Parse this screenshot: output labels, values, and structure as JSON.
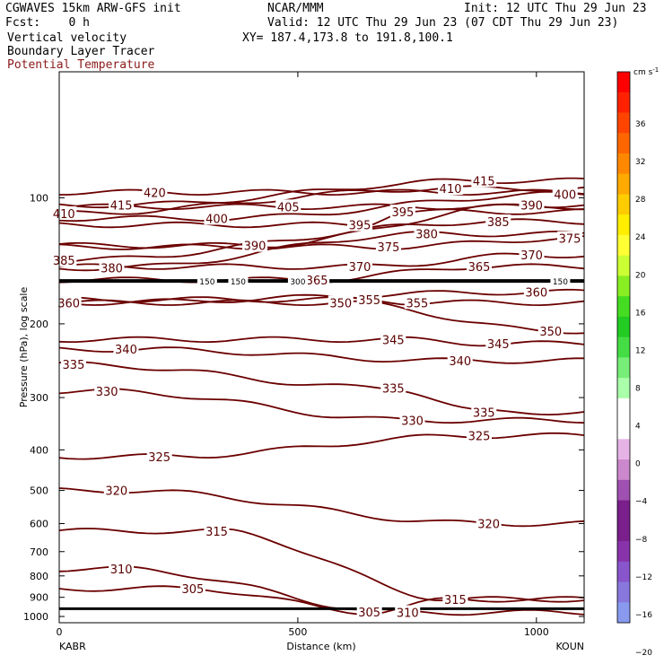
{
  "header": {
    "line1_left": "CGWAVES 15km ARW-GFS init",
    "line1_mid": "NCAR/MMM",
    "line1_right": "Init: 12 UTC Thu 29 Jun 23",
    "line2_left": "Fcst:    0 h",
    "line2_right": "Valid: 12 UTC Thu 29 Jun 23 (07 CDT Thu 29 Jun 23)",
    "line3_left": "Vertical velocity",
    "line3_mid": "XY= 187.4,173.8 to 191.8,100.1",
    "line4_left": "Boundary Layer Tracer",
    "line5_left": "Potential Temperature"
  },
  "chart_data": {
    "type": "cross-section contour",
    "xlabel": "Distance (km)",
    "ylabel": "Pressure (hPa), log scale",
    "x_ticks": [
      0,
      500,
      1000
    ],
    "xlim": [
      0,
      1100
    ],
    "y_ticks": [
      100,
      200,
      300,
      400,
      500,
      600,
      700,
      800,
      900,
      1000
    ],
    "left_endpoint": "KABR",
    "right_endpoint": "KOUN",
    "series": [
      {
        "name": "Potential Temperature",
        "contours": [
          {
            "label": "305",
            "label_positions": [
              [
                280,
                858
              ],
              [
                650,
                975
              ],
              [
                830,
                910
              ]
            ]
          },
          {
            "label": "310",
            "label_positions": [
              [
                130,
                770
              ],
              [
                730,
                978
              ]
            ]
          },
          {
            "label": "315",
            "label_positions": [
              [
                330,
                625
              ],
              [
                830,
                910
              ]
            ]
          },
          {
            "label": "320",
            "label_positions": [
              [
                120,
                500
              ],
              [
                900,
                600
              ]
            ]
          },
          {
            "label": "325",
            "label_positions": [
              [
                210,
                415
              ],
              [
                880,
                370
              ]
            ]
          },
          {
            "label": "330",
            "label_positions": [
              [
                100,
                290
              ],
              [
                740,
                340
              ]
            ]
          },
          {
            "label": "335",
            "label_positions": [
              [
                30,
                250
              ],
              [
                700,
                285
              ],
              [
                890,
                325
              ]
            ]
          },
          {
            "label": "340",
            "label_positions": [
              [
                140,
                230
              ],
              [
                840,
                245
              ]
            ]
          },
          {
            "label": "345",
            "label_positions": [
              [
                700,
                218
              ],
              [
                920,
                223
              ]
            ]
          },
          {
            "label": "350",
            "label_positions": [
              [
                590,
                178
              ],
              [
                1030,
                208
              ]
            ]
          },
          {
            "label": "355",
            "label_positions": [
              [
                650,
                175
              ],
              [
                750,
                178
              ]
            ]
          },
          {
            "label": "360",
            "label_positions": [
              [
                20,
                178
              ],
              [
                1000,
                168
              ]
            ]
          },
          {
            "label": "365",
            "label_positions": [
              [
                540,
                157
              ],
              [
                880,
                146
              ]
            ]
          },
          {
            "label": "370",
            "label_positions": [
              [
                630,
                146
              ],
              [
                990,
                137
              ]
            ]
          },
          {
            "label": "375",
            "label_positions": [
              [
                690,
                131
              ],
              [
                1070,
                125
              ]
            ]
          },
          {
            "label": "380",
            "label_positions": [
              [
                110,
                147
              ],
              [
                770,
                122
              ]
            ]
          },
          {
            "label": "385",
            "label_positions": [
              [
                10,
                141
              ],
              [
                920,
                114
              ]
            ]
          },
          {
            "label": "390",
            "label_positions": [
              [
                410,
                130
              ],
              [
                990,
                104
              ]
            ]
          },
          {
            "label": "395",
            "label_positions": [
              [
                630,
                116
              ],
              [
                720,
                108
              ]
            ]
          },
          {
            "label": "400",
            "label_positions": [
              [
                330,
                112
              ],
              [
                1060,
                98
              ]
            ]
          },
          {
            "label": "405",
            "label_positions": [
              [
                480,
                105
              ]
            ]
          },
          {
            "label": "410",
            "label_positions": [
              [
                10,
                109
              ],
              [
                820,
                95
              ]
            ]
          },
          {
            "label": "415",
            "label_positions": [
              [
                130,
                104
              ],
              [
                890,
                91
              ]
            ]
          },
          {
            "label": "420",
            "label_positions": [
              [
                200,
                97
              ]
            ]
          }
        ]
      },
      {
        "name": "Boundary Layer Tracer",
        "contours": [
          {
            "label": "150",
            "label_positions": [
              [
                310,
                158
              ],
              [
                375,
                158
              ],
              [
                1050,
                158
              ]
            ]
          },
          {
            "label": "300",
            "label_positions": [
              [
                500,
                158
              ]
            ]
          }
        ]
      }
    ],
    "colorbar": {
      "unit": "cm s",
      "unit_exponent": "-1",
      "levels": [
        -20,
        -16,
        -12,
        -8,
        -4,
        0,
        4,
        8,
        12,
        16,
        20,
        24,
        28,
        32,
        36
      ],
      "labels": [
        "36",
        "32",
        "28",
        "24",
        "20",
        "16",
        "12",
        "8",
        "4",
        "0",
        "−4",
        "−8",
        "−12",
        "−16",
        "−20"
      ],
      "colors": [
        "#ff0000",
        "#ff2200",
        "#ff4400",
        "#ff6600",
        "#ff8800",
        "#ffaa00",
        "#ffcc00",
        "#ffee00",
        "#ffff33",
        "#ccff33",
        "#88ee22",
        "#44dd22",
        "#22cc22",
        "#44dd44",
        "#77ee77",
        "#aaffaa",
        "#ffffff",
        "#ffffff",
        "#e6b3e6",
        "#cc88cc",
        "#a050b0",
        "#7a1f8c",
        "#7a1f8c",
        "#8833aa",
        "#8855cc",
        "#8877dd",
        "#8899ee"
      ]
    }
  }
}
